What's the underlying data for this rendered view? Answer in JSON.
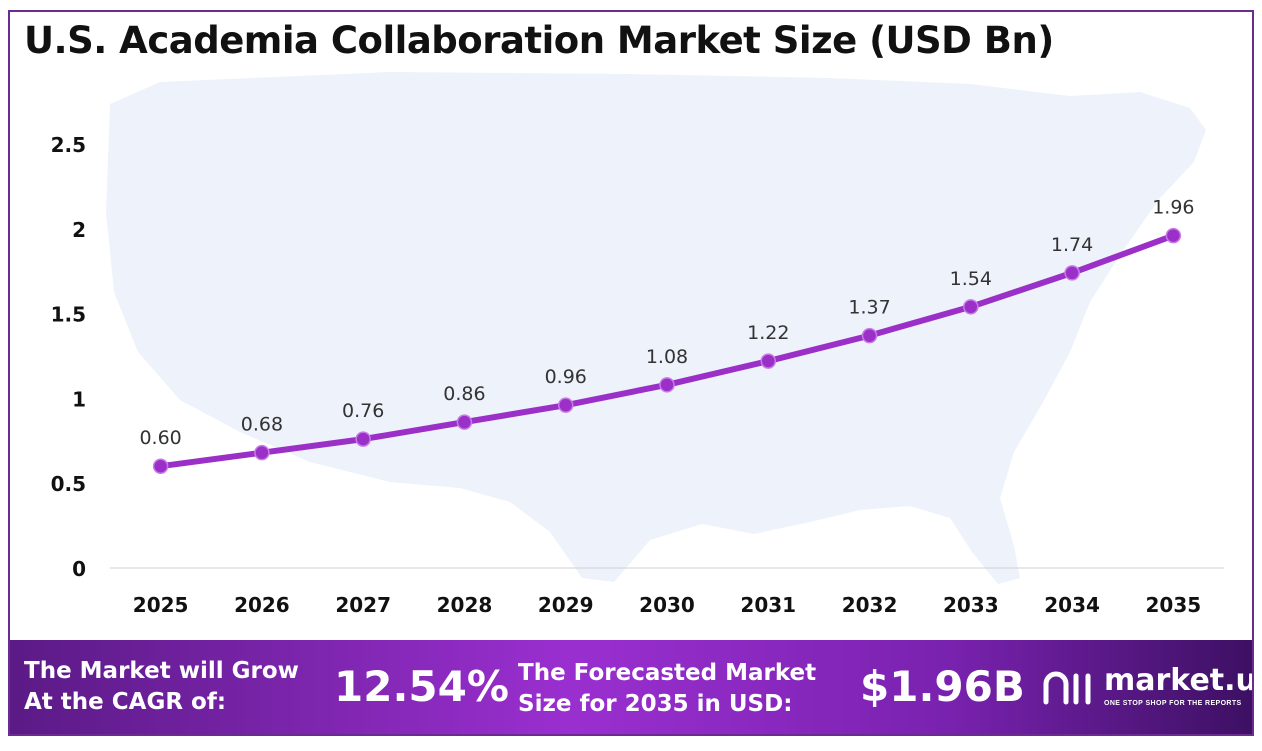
{
  "chart_data": {
    "type": "line",
    "title": "U.S. Academia Collaboration Market Size (USD Bn)",
    "xlabel": "",
    "ylabel": "",
    "categories": [
      "2025",
      "2026",
      "2027",
      "2028",
      "2029",
      "2030",
      "2031",
      "2032",
      "2033",
      "2034",
      "2035"
    ],
    "values": [
      0.6,
      0.68,
      0.76,
      0.86,
      0.96,
      1.08,
      1.22,
      1.37,
      1.54,
      1.74,
      1.96
    ],
    "data_labels": [
      "0.60",
      "0.68",
      "0.76",
      "0.86",
      "0.96",
      "1.08",
      "1.22",
      "1.37",
      "1.54",
      "1.74",
      "1.96"
    ],
    "ylim": [
      0,
      2.5
    ],
    "y_ticks": [
      "0",
      "0.5",
      "1",
      "1.5",
      "2",
      "2.5"
    ],
    "grid": false,
    "line_color": "#9b30c8",
    "background_graphic": "us-map-silhouette"
  },
  "footer": {
    "cagr_label_line1": "The Market will Grow",
    "cagr_label_line2": "At the CAGR of:",
    "cagr_value": "12.54%",
    "forecast_label_line1": "The Forecasted Market",
    "forecast_label_line2": "Size for 2035 in USD:",
    "forecast_value": "$1.96B"
  },
  "brand": {
    "name": "market.us",
    "tagline": "ONE STOP SHOP FOR THE REPORTS",
    "logo_icon": "market-us-logo-icon"
  },
  "colors": {
    "border": "#6a2c91",
    "accent": "#9b30c8",
    "map": "#eef2fa"
  }
}
